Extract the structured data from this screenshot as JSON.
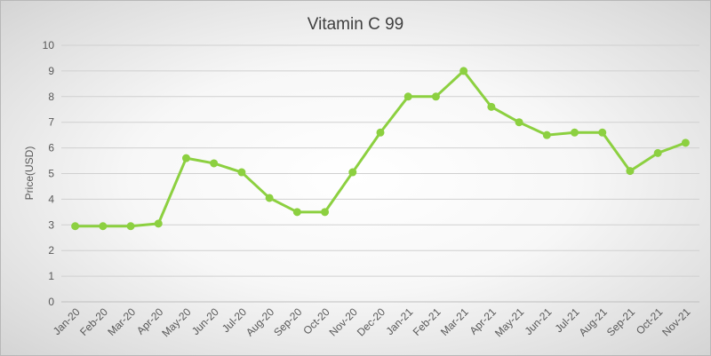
{
  "chart_data": {
    "type": "line",
    "title": "Vitamin C 99",
    "xlabel": "",
    "ylabel": "Price(USD)",
    "ylim": [
      0,
      10
    ],
    "yticks": [
      "0",
      "1",
      "2",
      "3",
      "4",
      "5",
      "6",
      "7",
      "8",
      "9",
      "10"
    ],
    "categories": [
      "Jan-20",
      "Feb-20",
      "Mar-20",
      "Apr-20",
      "May-20",
      "Jun-20",
      "Jul-20",
      "Aug-20",
      "Sep-20",
      "Oct-20",
      "Nov-20",
      "Dec-20",
      "Jan-21",
      "Feb-21",
      "Mar-21",
      "Apr-21",
      "May-21",
      "Jun-21",
      "Jul-21",
      "Aug-21",
      "Sep-21",
      "Oct-21",
      "Nov-21"
    ],
    "series": [
      {
        "name": "Vitamin C 99",
        "color": "#8cd040",
        "values": [
          2.95,
          2.95,
          2.95,
          3.05,
          5.6,
          5.4,
          5.05,
          4.05,
          3.5,
          3.5,
          5.05,
          6.6,
          8.0,
          8.0,
          9.0,
          7.6,
          7.0,
          6.5,
          6.6,
          6.6,
          5.1,
          5.8,
          6.2
        ]
      }
    ],
    "grid": true,
    "legend": "none"
  }
}
